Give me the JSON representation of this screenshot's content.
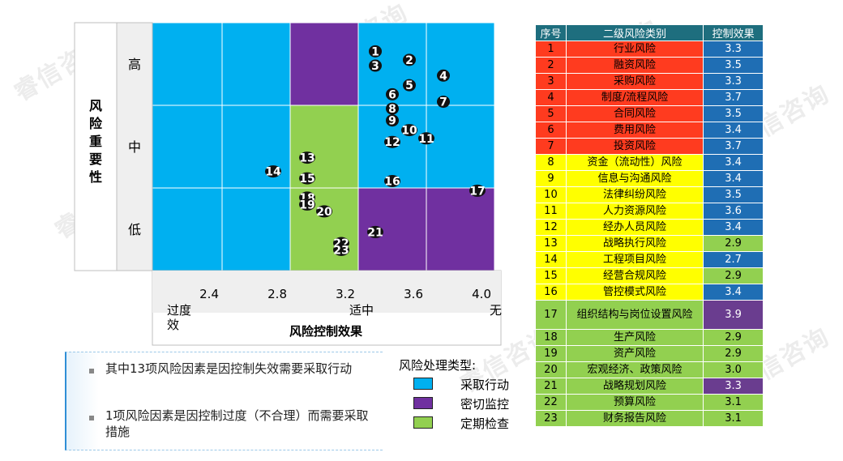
{
  "chart_data": {
    "type": "scatter",
    "ylabel": "风险重要性",
    "xlabel": "风险控制效果",
    "x_ticks": [
      "2.4",
      "2.8",
      "3.2",
      "3.6",
      "4.0"
    ],
    "x_categories": [
      "过度效",
      "适中",
      "无"
    ],
    "y_categories": [
      "高",
      "中",
      "低"
    ],
    "zones": [
      {
        "row": "高",
        "cells": [
          "采取行动",
          "采取行动",
          "密切监控",
          "采取行动",
          "采取行动"
        ]
      },
      {
        "row": "中",
        "cells": [
          "采取行动",
          "采取行动",
          "定期检查",
          "采取行动",
          "采取行动"
        ]
      },
      {
        "row": "低",
        "cells": [
          "采取行动",
          "采取行动",
          "定期检查",
          "密切监控",
          "密切监控"
        ]
      }
    ],
    "points": [
      {
        "id": "1",
        "x": 3.3,
        "y": 1.04
      },
      {
        "id": "2",
        "x": 3.5,
        "y": 1.35
      },
      {
        "id": "3",
        "x": 3.3,
        "y": 1.56
      },
      {
        "id": "4",
        "x": 3.7,
        "y": 1.92
      },
      {
        "id": "5",
        "x": 3.5,
        "y": 2.27
      },
      {
        "id": "6",
        "x": 3.4,
        "y": 2.6
      },
      {
        "id": "7",
        "x": 3.7,
        "y": 2.87
      },
      {
        "id": "8",
        "x": 3.4,
        "y": 3.12
      },
      {
        "id": "9",
        "x": 3.4,
        "y": 3.55
      },
      {
        "id": "10",
        "x": 3.5,
        "y": 3.9
      },
      {
        "id": "11",
        "x": 3.6,
        "y": 4.2
      },
      {
        "id": "12",
        "x": 3.4,
        "y": 4.33
      },
      {
        "id": "13",
        "x": 2.9,
        "y": 4.9
      },
      {
        "id": "14",
        "x": 2.7,
        "y": 5.4
      },
      {
        "id": "15",
        "x": 2.9,
        "y": 5.65
      },
      {
        "id": "16",
        "x": 3.4,
        "y": 5.75
      },
      {
        "id": "17",
        "x": 3.9,
        "y": 6.1
      },
      {
        "id": "18",
        "x": 2.9,
        "y": 6.35
      },
      {
        "id": "19",
        "x": 2.9,
        "y": 6.6
      },
      {
        "id": "20",
        "x": 3.0,
        "y": 6.85
      },
      {
        "id": "21",
        "x": 3.3,
        "y": 7.6
      },
      {
        "id": "22",
        "x": 3.1,
        "y": 8.0
      },
      {
        "id": "23",
        "x": 3.1,
        "y": 8.25
      }
    ]
  },
  "legend": {
    "title": "风险处理类型:",
    "items": [
      {
        "label": "采取行动",
        "color": "#00b0f0"
      },
      {
        "label": "密切监控",
        "color": "#7030a0"
      },
      {
        "label": "定期检查",
        "color": "#92d050"
      }
    ]
  },
  "notes": [
    "其中13项风险因素是因控制失效需要采取行动",
    "1项风险因素是因控制过度（不合理）而需要采取措施"
  ],
  "table": {
    "headers": [
      "序号",
      "二级风险类别",
      "控制效果"
    ],
    "rows": [
      {
        "no": "1",
        "name": "行业风险",
        "eff": "3.3",
        "row_color": "#ff3b1f",
        "eff_color": "#1f6eb4"
      },
      {
        "no": "2",
        "name": "融资风险",
        "eff": "3.5",
        "row_color": "#ff3b1f",
        "eff_color": "#1f6eb4"
      },
      {
        "no": "3",
        "name": "采购风险",
        "eff": "3.3",
        "row_color": "#ff3b1f",
        "eff_color": "#1f6eb4"
      },
      {
        "no": "4",
        "name": "制度/流程风险",
        "eff": "3.7",
        "row_color": "#ff3b1f",
        "eff_color": "#1f6eb4"
      },
      {
        "no": "5",
        "name": "合同风险",
        "eff": "3.5",
        "row_color": "#ff3b1f",
        "eff_color": "#1f6eb4"
      },
      {
        "no": "6",
        "name": "费用风险",
        "eff": "3.4",
        "row_color": "#ff3b1f",
        "eff_color": "#1f6eb4"
      },
      {
        "no": "7",
        "name": "投资风险",
        "eff": "3.7",
        "row_color": "#ff3b1f",
        "eff_color": "#1f6eb4"
      },
      {
        "no": "8",
        "name": "资金（流动性）风险",
        "eff": "3.4",
        "row_color": "#ffff00",
        "eff_color": "#1f6eb4"
      },
      {
        "no": "9",
        "name": "信息与沟通风险",
        "eff": "3.4",
        "row_color": "#ffff00",
        "eff_color": "#1f6eb4"
      },
      {
        "no": "10",
        "name": "法律纠纷风险",
        "eff": "3.5",
        "row_color": "#ffff00",
        "eff_color": "#1f6eb4"
      },
      {
        "no": "11",
        "name": "人力资源风险",
        "eff": "3.6",
        "row_color": "#ffff00",
        "eff_color": "#1f6eb4"
      },
      {
        "no": "12",
        "name": "经办人员风险",
        "eff": "3.4",
        "row_color": "#ffff00",
        "eff_color": "#1f6eb4"
      },
      {
        "no": "13",
        "name": "战略执行风险",
        "eff": "2.9",
        "row_color": "#ffff00",
        "eff_color": "#92d050"
      },
      {
        "no": "14",
        "name": "工程项目风险",
        "eff": "2.7",
        "row_color": "#ffff00",
        "eff_color": "#1f6eb4"
      },
      {
        "no": "15",
        "name": "经营合规风险",
        "eff": "2.9",
        "row_color": "#ffff00",
        "eff_color": "#92d050"
      },
      {
        "no": "16",
        "name": "管控模式风险",
        "eff": "3.4",
        "row_color": "#ffff00",
        "eff_color": "#1f6eb4"
      },
      {
        "no": "17",
        "name": "组织结构与岗位设置风险",
        "eff": "3.9",
        "row_color": "#92d050",
        "eff_color": "#6a3d8f"
      },
      {
        "no": "18",
        "name": "生产风险",
        "eff": "2.9",
        "row_color": "#92d050",
        "eff_color": "#92d050"
      },
      {
        "no": "19",
        "name": "资产风险",
        "eff": "2.9",
        "row_color": "#92d050",
        "eff_color": "#92d050"
      },
      {
        "no": "20",
        "name": "宏观经济、政策风险",
        "eff": "3.0",
        "row_color": "#92d050",
        "eff_color": "#92d050"
      },
      {
        "no": "21",
        "name": "战略规划风险",
        "eff": "3.3",
        "row_color": "#92d050",
        "eff_color": "#6a3d8f"
      },
      {
        "no": "22",
        "name": "预算风险",
        "eff": "3.1",
        "row_color": "#92d050",
        "eff_color": "#92d050"
      },
      {
        "no": "23",
        "name": "财务报告风险",
        "eff": "3.1",
        "row_color": "#92d050",
        "eff_color": "#92d050"
      }
    ]
  },
  "watermark": "睿信咨询"
}
